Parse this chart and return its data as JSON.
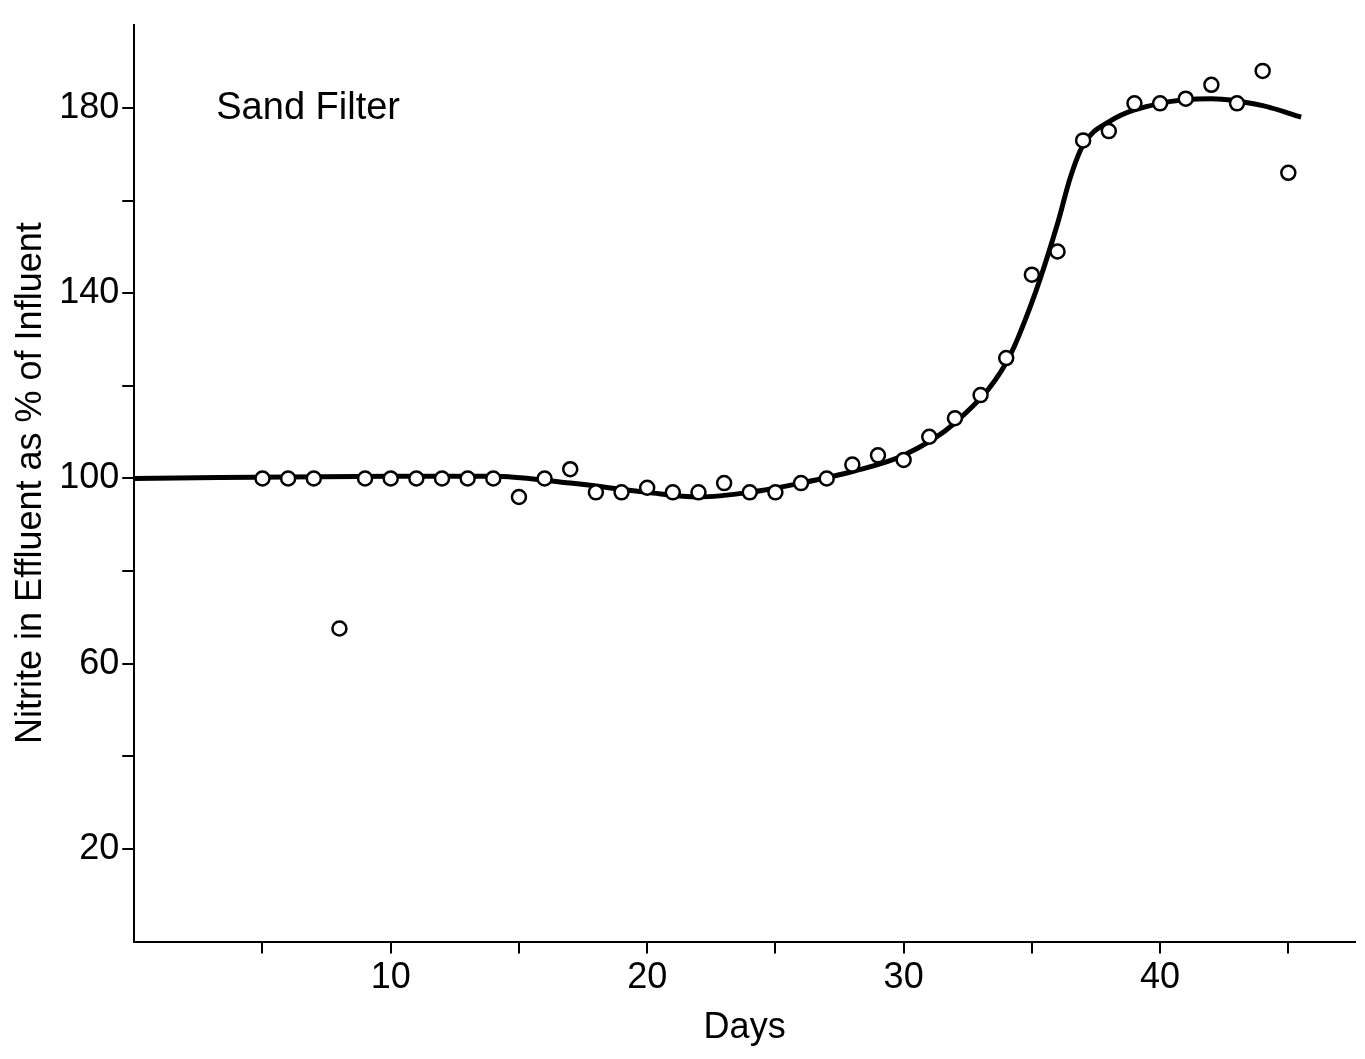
{
  "chart_data": {
    "type": "scatter",
    "xlabel": "Days",
    "ylabel": "Nitrite in Effluent as % of Influent",
    "annotations": [
      "Sand Filter"
    ],
    "xlim": [
      0,
      47.6
    ],
    "ylim": [
      0,
      198
    ],
    "xticks": [
      {
        "value": 5,
        "label": null
      },
      10,
      {
        "value": 15,
        "label": null
      },
      20,
      {
        "value": 25,
        "label": null
      },
      30,
      {
        "value": 35,
        "label": null
      },
      40,
      {
        "value": 45,
        "label": null
      }
    ],
    "yticks": [
      20,
      {
        "value": 40,
        "label": null
      },
      60,
      {
        "value": 80,
        "label": null
      },
      100,
      {
        "value": 120,
        "label": null
      },
      140,
      {
        "value": 160,
        "label": null
      },
      180
    ],
    "grid": false,
    "legend": false,
    "series": [
      {
        "color": "#000000",
        "marker": "circle",
        "x": [
          5,
          6,
          7,
          8,
          9,
          10,
          11,
          12,
          13,
          14,
          15,
          16,
          17,
          18,
          19,
          20,
          21,
          22,
          23,
          24,
          25,
          26,
          27,
          28,
          29,
          30,
          31,
          32,
          33,
          34,
          35,
          36,
          37,
          38,
          39,
          40,
          41,
          42,
          43,
          44,
          45
        ],
        "values": [
          100,
          100,
          100,
          67.6,
          100,
          100,
          100,
          100,
          100,
          100,
          96,
          100,
          102,
          97,
          97,
          98,
          97,
          97,
          99,
          97,
          97,
          99,
          100,
          103,
          105,
          104,
          109,
          113,
          118,
          126,
          144,
          149,
          173,
          175,
          181,
          181,
          182,
          185,
          181,
          188,
          166
        ]
      },
      {
        "type": "line",
        "color": "#000000",
        "marker": "none",
        "line_style": "solid",
        "x": [
          0,
          10,
          14,
          17,
          20,
          22,
          24,
          26,
          28,
          30,
          32,
          34,
          35,
          36,
          36.5,
          37,
          38,
          40,
          42,
          44,
          45.5
        ],
        "values": [
          100,
          100.5,
          100.5,
          99,
          97,
          96,
          97,
          99,
          101.5,
          105,
          112,
          125,
          138,
          155,
          165,
          172,
          177,
          181,
          182,
          180.5,
          178
        ]
      }
    ]
  }
}
